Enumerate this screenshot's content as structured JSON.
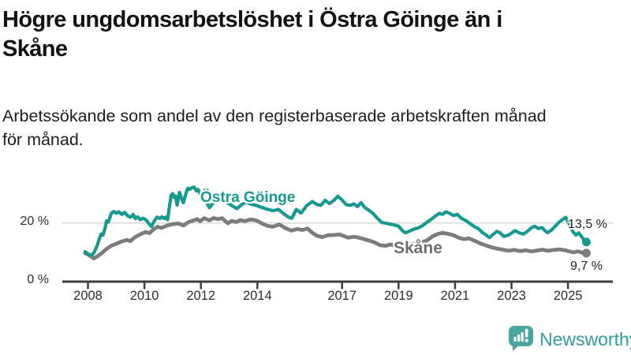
{
  "header": {
    "title_line1": "Högre ungdomsarbetslöshet i Östra Göinge än i",
    "title_line2": "Skåne",
    "subtitle_line1": "Arbetssökande som andel av den registerbaserade arbetskraften månad",
    "subtitle_line2": "för månad."
  },
  "footer": {
    "brand": "Newsworthy",
    "logo_icon": "bar-chart-speech-bubble-icon"
  },
  "chart_data": {
    "type": "line",
    "unit": "percent of registered labour force",
    "x_is_time": true,
    "xlim": [
      2007.75,
      2025.95
    ],
    "ylim": [
      0,
      42
    ],
    "grid": "single horizontal gridline at 20 %",
    "legend_position": "inline labels next to lines",
    "x_ticks": [
      {
        "year": 2008,
        "label": "2008"
      },
      {
        "year": 2010,
        "label": "2010"
      },
      {
        "year": 2012,
        "label": "2012"
      },
      {
        "year": 2014,
        "label": "2014"
      },
      {
        "year": 2017,
        "label": "2017"
      },
      {
        "year": 2019,
        "label": "2019"
      },
      {
        "year": 2021,
        "label": "2021"
      },
      {
        "year": 2023,
        "label": "2023"
      },
      {
        "year": 2025,
        "label": "2025"
      }
    ],
    "y_ticks": [
      {
        "value": 0,
        "label": "0 %"
      },
      {
        "value": 20,
        "label": "20 %"
      }
    ],
    "colors": {
      "ostra_goinge": "#16998e",
      "skane": "#7c7c7e",
      "axis": "#3e3e3e",
      "gridline": "#d9d9d9"
    },
    "series": [
      {
        "name": "Östra Göinge",
        "color": "#16998e",
        "end_value": 13.5,
        "end_value_label": "13,5 %",
        "points": [
          [
            2007.9,
            10.2
          ],
          [
            2008.0,
            9.5
          ],
          [
            2008.13,
            8.9
          ],
          [
            2008.22,
            10.0
          ],
          [
            2008.32,
            12.2
          ],
          [
            2008.42,
            15.0
          ],
          [
            2008.47,
            16.2
          ],
          [
            2008.53,
            15.8
          ],
          [
            2008.6,
            18.0
          ],
          [
            2008.66,
            20.7
          ],
          [
            2008.72,
            20.3
          ],
          [
            2008.83,
            23.3
          ],
          [
            2008.92,
            23.9
          ],
          [
            2009.0,
            23.3
          ],
          [
            2009.1,
            23.8
          ],
          [
            2009.2,
            22.9
          ],
          [
            2009.3,
            23.6
          ],
          [
            2009.42,
            22.3
          ],
          [
            2009.52,
            22.0
          ],
          [
            2009.6,
            22.9
          ],
          [
            2009.68,
            21.5
          ],
          [
            2009.76,
            22.1
          ],
          [
            2009.85,
            21.1
          ],
          [
            2009.95,
            21.6
          ],
          [
            2010.05,
            21.1
          ],
          [
            2010.15,
            19.8
          ],
          [
            2010.25,
            18.8
          ],
          [
            2010.35,
            20.7
          ],
          [
            2010.45,
            22.0
          ],
          [
            2010.55,
            21.5
          ],
          [
            2010.62,
            22.1
          ],
          [
            2010.7,
            21.5
          ],
          [
            2010.76,
            22.0
          ],
          [
            2010.82,
            21.1
          ],
          [
            2010.9,
            26.4
          ],
          [
            2010.95,
            29.5
          ],
          [
            2011.0,
            30.0
          ],
          [
            2011.05,
            28.7
          ],
          [
            2011.1,
            29.2
          ],
          [
            2011.16,
            26.1
          ],
          [
            2011.24,
            30.4
          ],
          [
            2011.3,
            28.7
          ],
          [
            2011.38,
            26.9
          ],
          [
            2011.48,
            30.4
          ],
          [
            2011.54,
            31.8
          ],
          [
            2011.6,
            31.4
          ],
          [
            2011.68,
            32.0
          ],
          [
            2011.76,
            32.2
          ],
          [
            2011.84,
            30.9
          ],
          [
            2011.9,
            31.4
          ],
          [
            2011.97,
            30.1
          ],
          [
            2012.1,
            28.6
          ],
          [
            2012.22,
            26.8
          ],
          [
            2012.3,
            25.2
          ],
          [
            2012.45,
            27.0
          ],
          [
            2012.6,
            28.2
          ],
          [
            2012.75,
            27.6
          ],
          [
            2012.9,
            27.1
          ],
          [
            2013.05,
            26.2
          ],
          [
            2013.18,
            25.4
          ],
          [
            2013.28,
            24.9
          ],
          [
            2013.45,
            26.3
          ],
          [
            2013.6,
            27.1
          ],
          [
            2013.78,
            26.4
          ],
          [
            2013.95,
            26.0
          ],
          [
            2014.15,
            25.3
          ],
          [
            2014.35,
            24.7
          ],
          [
            2014.55,
            24.2
          ],
          [
            2014.75,
            24.6
          ],
          [
            2014.95,
            23.0
          ],
          [
            2015.1,
            22.0
          ],
          [
            2015.22,
            21.6
          ],
          [
            2015.38,
            24.6
          ],
          [
            2015.55,
            23.4
          ],
          [
            2015.75,
            25.9
          ],
          [
            2015.95,
            27.3
          ],
          [
            2016.1,
            26.3
          ],
          [
            2016.25,
            26.0
          ],
          [
            2016.4,
            27.7
          ],
          [
            2016.55,
            26.6
          ],
          [
            2016.7,
            27.6
          ],
          [
            2016.85,
            29.1
          ],
          [
            2017.0,
            27.8
          ],
          [
            2017.15,
            26.2
          ],
          [
            2017.3,
            26.0
          ],
          [
            2017.42,
            26.5
          ],
          [
            2017.55,
            25.6
          ],
          [
            2017.67,
            26.9
          ],
          [
            2017.8,
            25.3
          ],
          [
            2017.95,
            24.3
          ],
          [
            2018.1,
            23.2
          ],
          [
            2018.25,
            21.6
          ],
          [
            2018.4,
            20.2
          ],
          [
            2018.55,
            19.9
          ],
          [
            2018.7,
            19.6
          ],
          [
            2018.85,
            19.3
          ],
          [
            2019.0,
            18.9
          ],
          [
            2019.15,
            17.2
          ],
          [
            2019.25,
            16.6
          ],
          [
            2019.38,
            17.2
          ],
          [
            2019.55,
            17.9
          ],
          [
            2019.7,
            18.3
          ],
          [
            2019.85,
            19.1
          ],
          [
            2020.0,
            20.2
          ],
          [
            2020.15,
            21.2
          ],
          [
            2020.3,
            22.3
          ],
          [
            2020.45,
            23.3
          ],
          [
            2020.55,
            22.9
          ],
          [
            2020.68,
            23.8
          ],
          [
            2020.8,
            23.3
          ],
          [
            2020.95,
            22.5
          ],
          [
            2021.08,
            22.9
          ],
          [
            2021.22,
            21.6
          ],
          [
            2021.38,
            20.8
          ],
          [
            2021.52,
            19.9
          ],
          [
            2021.66,
            18.9
          ],
          [
            2021.82,
            18.1
          ],
          [
            2021.97,
            16.7
          ],
          [
            2022.1,
            15.9
          ],
          [
            2022.22,
            15.0
          ],
          [
            2022.35,
            16.1
          ],
          [
            2022.48,
            17.1
          ],
          [
            2022.6,
            16.6
          ],
          [
            2022.73,
            15.4
          ],
          [
            2022.88,
            15.8
          ],
          [
            2023.0,
            16.5
          ],
          [
            2023.12,
            17.4
          ],
          [
            2023.28,
            16.6
          ],
          [
            2023.42,
            16.2
          ],
          [
            2023.56,
            17.1
          ],
          [
            2023.7,
            18.3
          ],
          [
            2023.82,
            18.9
          ],
          [
            2023.95,
            18.1
          ],
          [
            2024.08,
            18.4
          ],
          [
            2024.2,
            17.2
          ],
          [
            2024.28,
            16.7
          ],
          [
            2024.42,
            17.6
          ],
          [
            2024.55,
            18.9
          ],
          [
            2024.68,
            20.2
          ],
          [
            2024.8,
            21.1
          ],
          [
            2024.92,
            21.9
          ],
          [
            2025.05,
            19.6
          ],
          [
            2025.17,
            17.1
          ],
          [
            2025.28,
            15.9
          ],
          [
            2025.38,
            16.6
          ],
          [
            2025.5,
            15.1
          ],
          [
            2025.65,
            13.5
          ]
        ]
      },
      {
        "name": "Skåne",
        "color": "#7c7c7e",
        "end_value": 9.7,
        "end_value_label": "9,7 %",
        "points": [
          [
            2007.9,
            9.7
          ],
          [
            2008.05,
            9.0
          ],
          [
            2008.2,
            7.9
          ],
          [
            2008.35,
            8.7
          ],
          [
            2008.5,
            9.8
          ],
          [
            2008.65,
            11.1
          ],
          [
            2008.82,
            12.2
          ],
          [
            2009.0,
            12.9
          ],
          [
            2009.2,
            13.7
          ],
          [
            2009.38,
            14.2
          ],
          [
            2009.5,
            13.8
          ],
          [
            2009.66,
            15.1
          ],
          [
            2009.85,
            16.1
          ],
          [
            2010.04,
            16.9
          ],
          [
            2010.18,
            16.5
          ],
          [
            2010.32,
            17.8
          ],
          [
            2010.47,
            18.7
          ],
          [
            2010.6,
            18.3
          ],
          [
            2010.8,
            19.1
          ],
          [
            2011.0,
            19.6
          ],
          [
            2011.2,
            19.8
          ],
          [
            2011.38,
            19.1
          ],
          [
            2011.56,
            20.3
          ],
          [
            2011.75,
            20.9
          ],
          [
            2011.87,
            21.3
          ],
          [
            2011.97,
            20.6
          ],
          [
            2012.12,
            21.6
          ],
          [
            2012.3,
            20.9
          ],
          [
            2012.45,
            21.7
          ],
          [
            2012.6,
            21.3
          ],
          [
            2012.75,
            21.6
          ],
          [
            2012.95,
            19.9
          ],
          [
            2013.1,
            20.7
          ],
          [
            2013.25,
            20.3
          ],
          [
            2013.4,
            21.0
          ],
          [
            2013.55,
            20.6
          ],
          [
            2013.75,
            21.2
          ],
          [
            2013.95,
            20.9
          ],
          [
            2014.15,
            19.9
          ],
          [
            2014.35,
            19.0
          ],
          [
            2014.55,
            18.7
          ],
          [
            2014.78,
            19.5
          ],
          [
            2015.0,
            18.2
          ],
          [
            2015.2,
            17.4
          ],
          [
            2015.4,
            17.9
          ],
          [
            2015.6,
            17.6
          ],
          [
            2015.78,
            18.1
          ],
          [
            2015.95,
            16.6
          ],
          [
            2016.12,
            15.6
          ],
          [
            2016.3,
            15.2
          ],
          [
            2016.5,
            15.8
          ],
          [
            2016.7,
            15.9
          ],
          [
            2016.9,
            16.1
          ],
          [
            2017.05,
            15.6
          ],
          [
            2017.2,
            15.0
          ],
          [
            2017.45,
            15.3
          ],
          [
            2017.7,
            14.7
          ],
          [
            2017.95,
            14.0
          ],
          [
            2018.15,
            13.4
          ],
          [
            2018.35,
            12.4
          ],
          [
            2018.55,
            12.2
          ],
          [
            2018.7,
            12.7
          ],
          [
            2018.88,
            12.2
          ],
          [
            2019.05,
            12.6
          ],
          [
            2019.2,
            13.1
          ],
          [
            2019.4,
            12.7
          ],
          [
            2019.6,
            12.9
          ],
          [
            2019.8,
            13.3
          ],
          [
            2020.0,
            14.0
          ],
          [
            2020.2,
            15.4
          ],
          [
            2020.38,
            16.2
          ],
          [
            2020.55,
            16.6
          ],
          [
            2020.75,
            16.3
          ],
          [
            2020.95,
            15.8
          ],
          [
            2021.12,
            15.0
          ],
          [
            2021.3,
            14.5
          ],
          [
            2021.5,
            14.7
          ],
          [
            2021.7,
            13.9
          ],
          [
            2021.9,
            13.0
          ],
          [
            2022.1,
            12.3
          ],
          [
            2022.3,
            11.7
          ],
          [
            2022.5,
            11.2
          ],
          [
            2022.7,
            10.9
          ],
          [
            2022.9,
            10.5
          ],
          [
            2023.1,
            10.8
          ],
          [
            2023.3,
            10.4
          ],
          [
            2023.5,
            10.7
          ],
          [
            2023.7,
            10.3
          ],
          [
            2023.9,
            10.6
          ],
          [
            2024.1,
            10.9
          ],
          [
            2024.3,
            10.5
          ],
          [
            2024.5,
            10.8
          ],
          [
            2024.7,
            11.0
          ],
          [
            2024.9,
            10.7
          ],
          [
            2025.05,
            10.3
          ],
          [
            2025.2,
            10.0
          ],
          [
            2025.35,
            10.3
          ],
          [
            2025.5,
            9.9
          ],
          [
            2025.65,
            9.7
          ]
        ]
      }
    ]
  }
}
